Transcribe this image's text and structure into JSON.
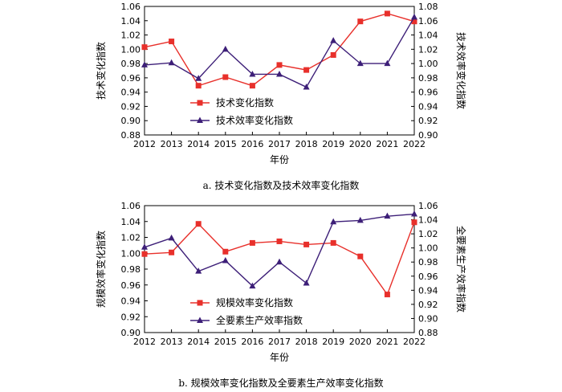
{
  "chart_data": [
    {
      "type": "line",
      "caption": "a. 技术变化指数及技术效率变化指数",
      "xlabel": "年份",
      "ylabel_left": "技术变化指数",
      "ylabel_right": "技术效率变化指数",
      "categories": [
        "2012",
        "2013",
        "2014",
        "2015",
        "2016",
        "2017",
        "2018",
        "2019",
        "2020",
        "2021",
        "2022"
      ],
      "left_ylim": [
        0.88,
        1.06
      ],
      "left_ticks": [
        "0.88",
        "0.90",
        "0.92",
        "0.94",
        "0.96",
        "0.98",
        "1.00",
        "1.02",
        "1.04",
        "1.06"
      ],
      "right_ylim": [
        0.9,
        1.08
      ],
      "right_ticks": [
        "0.90",
        "0.92",
        "0.94",
        "0.96",
        "0.98",
        "1.00",
        "1.02",
        "1.04",
        "1.06",
        "1.08"
      ],
      "legend_position": "lower-left",
      "series": [
        {
          "name": "技术变化指数",
          "axis": "left",
          "color": "#e8302b",
          "marker": "square",
          "values": [
            1.003,
            1.011,
            0.949,
            0.961,
            0.949,
            0.978,
            0.971,
            0.992,
            1.039,
            1.05,
            1.039
          ]
        },
        {
          "name": "技术效率变化指数",
          "axis": "right",
          "color": "#3d1f78",
          "marker": "triangle",
          "values": [
            0.998,
            1.001,
            0.979,
            1.02,
            0.985,
            0.985,
            0.967,
            1.032,
            1.0,
            1.0,
            1.065
          ]
        }
      ]
    },
    {
      "type": "line",
      "caption": "b. 规模效率变化指数及全要素生产效率变化指数",
      "xlabel": "年份",
      "ylabel_left": "规模效率变化指数",
      "ylabel_right": "全要素生产效率指数",
      "categories": [
        "2012",
        "2013",
        "2014",
        "2015",
        "2016",
        "2017",
        "2018",
        "2019",
        "2020",
        "2021",
        "2022"
      ],
      "left_ylim": [
        0.9,
        1.06
      ],
      "left_ticks": [
        "0.90",
        "0.92",
        "0.94",
        "0.96",
        "0.98",
        "1.00",
        "1.02",
        "1.04",
        "1.06"
      ],
      "right_ylim": [
        0.88,
        1.06
      ],
      "right_ticks": [
        "0.88",
        "0.90",
        "0.92",
        "0.94",
        "0.96",
        "0.98",
        "1.00",
        "1.02",
        "1.04",
        "1.06"
      ],
      "legend_position": "lower-left",
      "series": [
        {
          "name": "规模效率变化指数",
          "axis": "left",
          "color": "#e8302b",
          "marker": "square",
          "values": [
            0.999,
            1.001,
            1.037,
            1.002,
            1.013,
            1.015,
            1.011,
            1.013,
            0.996,
            0.948,
            1.039
          ]
        },
        {
          "name": "全要素生产效率指数",
          "axis": "right",
          "color": "#3d1f78",
          "marker": "triangle",
          "values": [
            1.001,
            1.014,
            0.967,
            0.982,
            0.946,
            0.98,
            0.95,
            1.037,
            1.039,
            1.045,
            1.048
          ]
        }
      ]
    }
  ]
}
